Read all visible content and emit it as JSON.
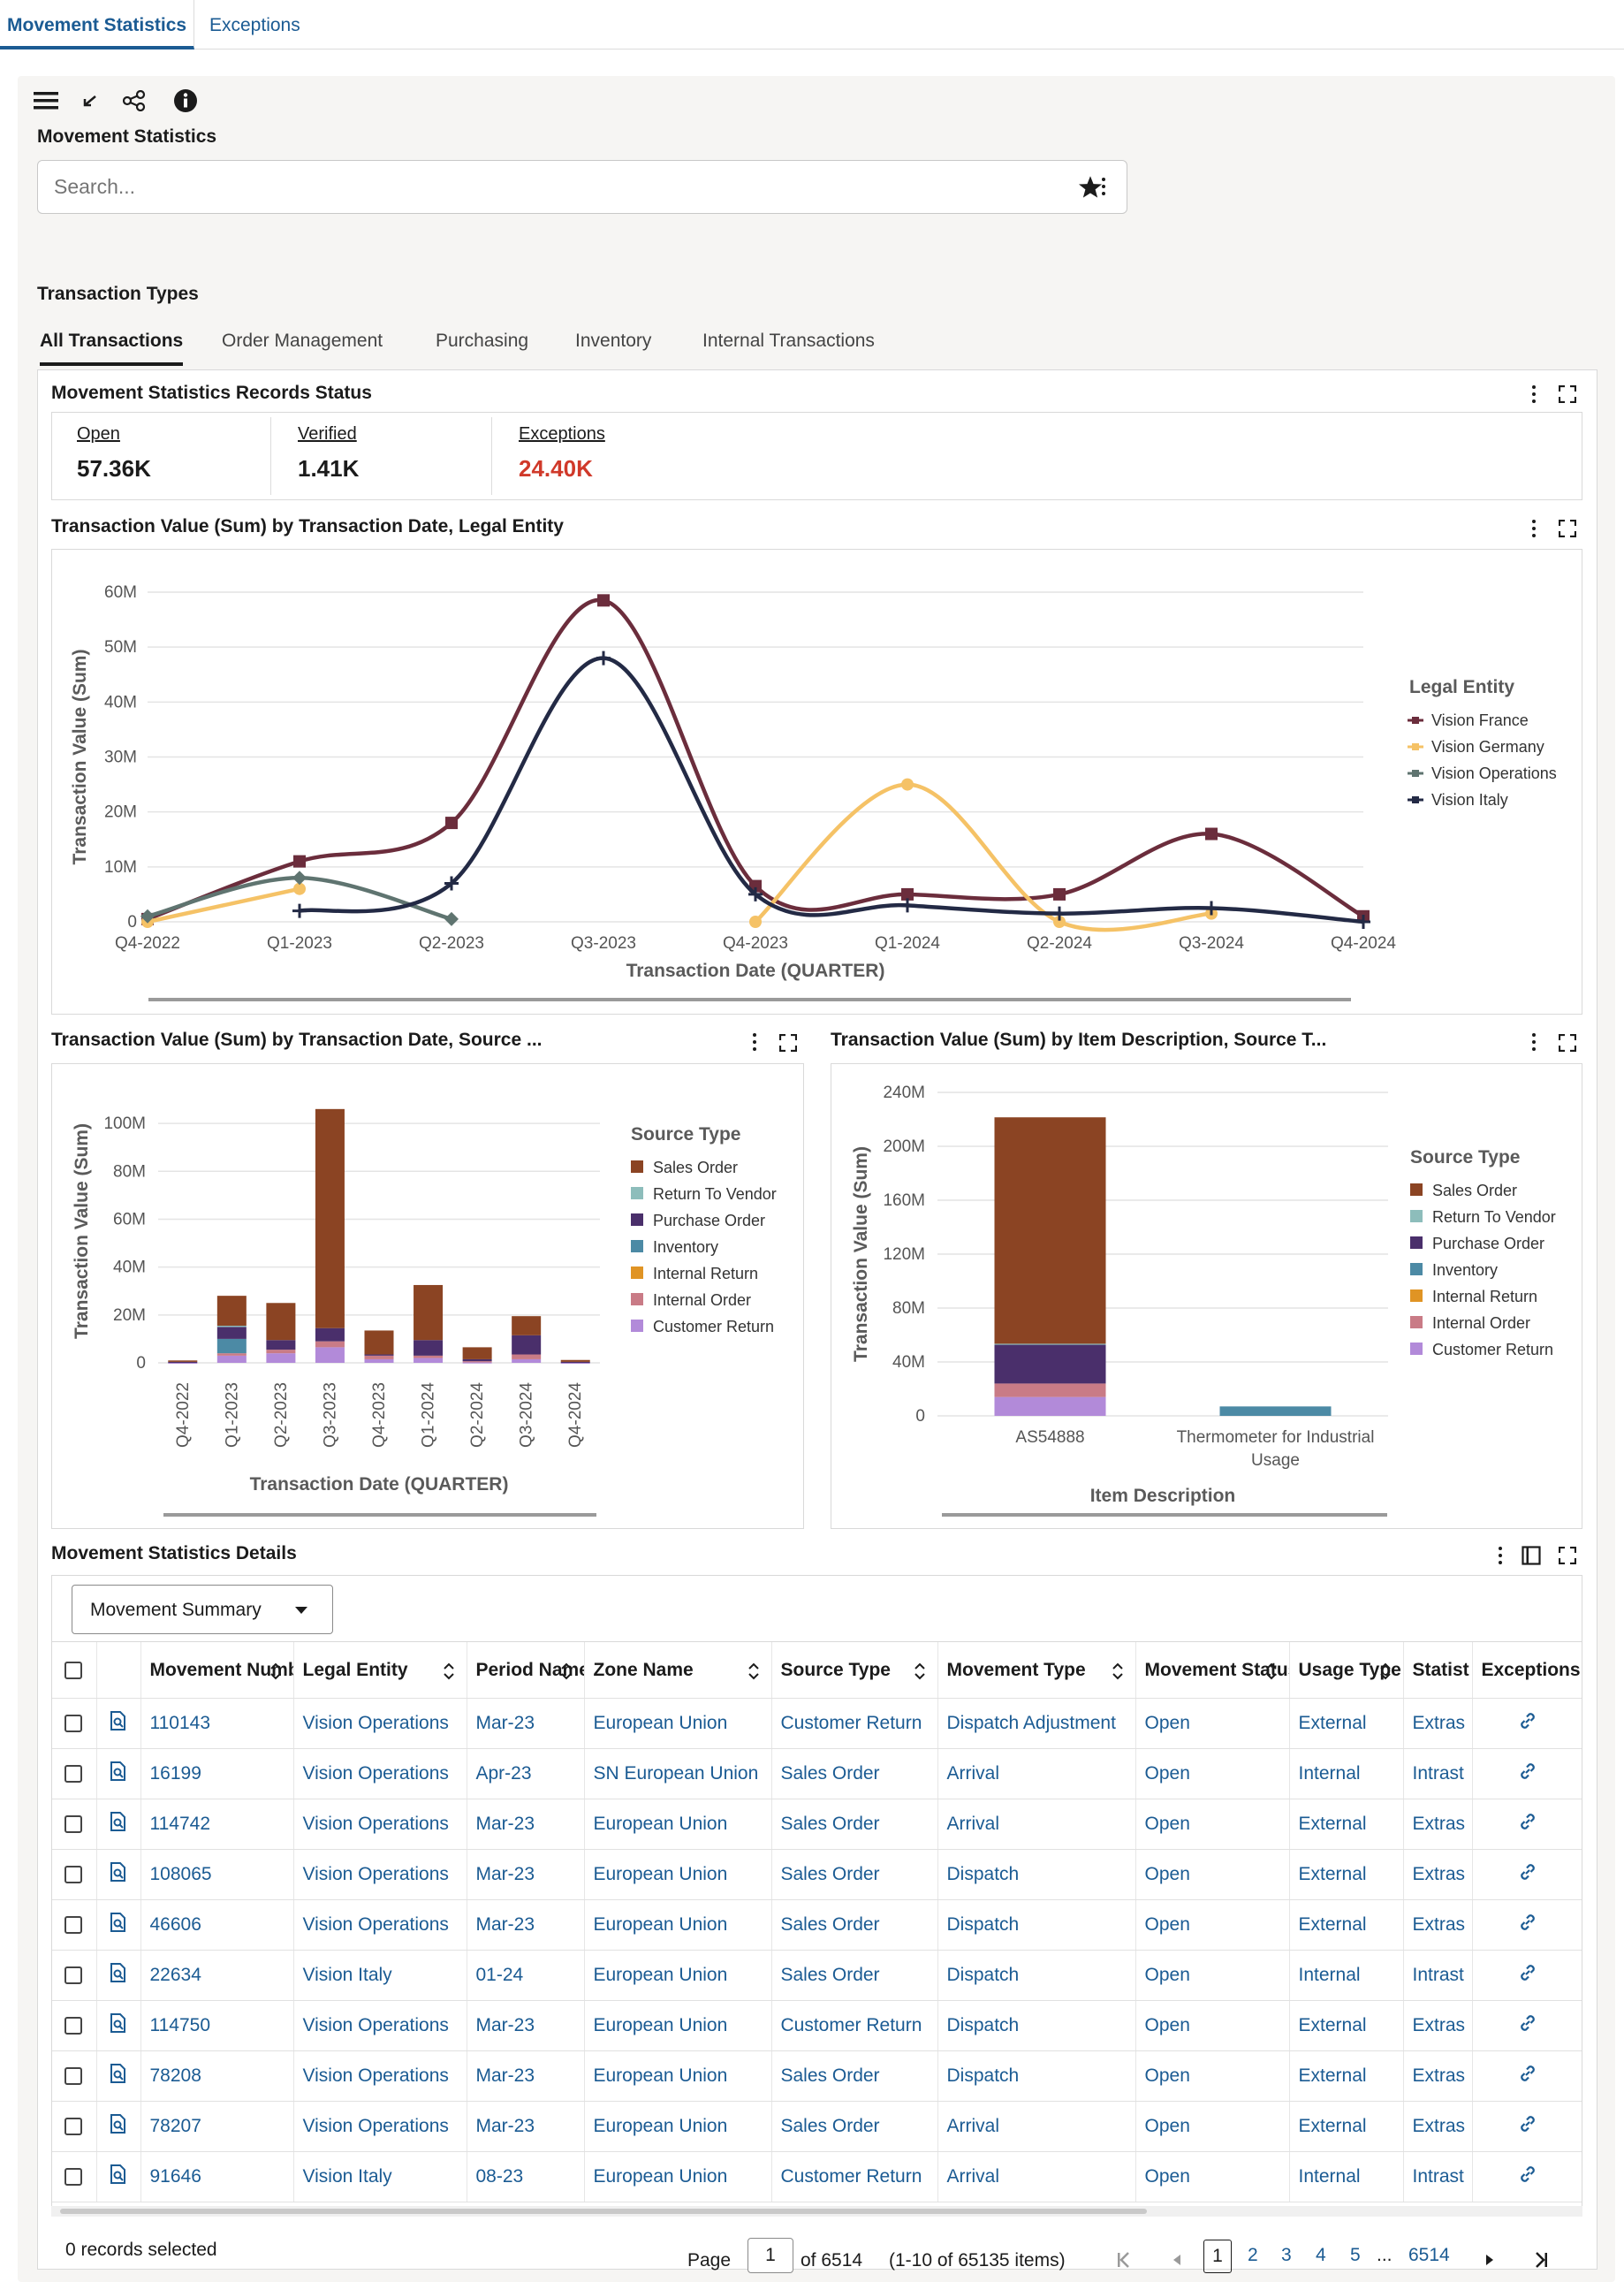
{
  "tabs": [
    {
      "label": "Movement Statistics"
    },
    {
      "label": "Exceptions"
    }
  ],
  "page_title": "Movement Statistics",
  "search": {
    "placeholder": "Search..."
  },
  "transaction_types": {
    "heading": "Transaction Types",
    "tabs": [
      "All Transactions",
      "Order Management",
      "Purchasing",
      "Inventory",
      "Internal Transactions"
    ]
  },
  "status_card": {
    "title": "Movement Statistics Records Status",
    "metrics": [
      {
        "label": "Open",
        "value": "57.36K"
      },
      {
        "label": "Verified",
        "value": "1.41K"
      },
      {
        "label": "Exceptions",
        "value": "24.40K"
      }
    ]
  },
  "colors": {
    "accent": "#1b5b93",
    "exceptions_red": "#d0392a"
  },
  "chart_data": [
    {
      "type": "line",
      "title": "Transaction Value (Sum) by Transaction Date, Legal Entity",
      "xlabel": "Transaction Date (QUARTER)",
      "ylabel": "Transaction Value (Sum)",
      "ylim": [
        0,
        60
      ],
      "yticks": [
        "0",
        "10M",
        "20M",
        "30M",
        "40M",
        "50M",
        "60M"
      ],
      "categories": [
        "Q4-2022",
        "Q1-2023",
        "Q2-2023",
        "Q3-2023",
        "Q4-2023",
        "Q1-2024",
        "Q2-2024",
        "Q3-2024",
        "Q4-2024"
      ],
      "legend_title": "Legal Entity",
      "series": [
        {
          "name": "Vision France",
          "color": "#6b2d3c",
          "marker": "square",
          "values": [
            0.5,
            11,
            18,
            58.5,
            6.5,
            5,
            5,
            16,
            1
          ]
        },
        {
          "name": "Vision Germany",
          "color": "#f5c266",
          "marker": "circle",
          "values": [
            0,
            6,
            null,
            null,
            0,
            25,
            0,
            1.5,
            null
          ]
        },
        {
          "name": "Vision Operations",
          "color": "#5f7470",
          "marker": "diamond",
          "values": [
            1,
            8,
            0.5,
            null,
            null,
            null,
            null,
            null,
            null
          ]
        },
        {
          "name": "Vision Italy",
          "color": "#232a45",
          "marker": "plus",
          "values": [
            null,
            2,
            7,
            48,
            5,
            3,
            1.5,
            2.5,
            0
          ]
        }
      ]
    },
    {
      "type": "bar",
      "stacked": true,
      "title": "Transaction Value (Sum) by Transaction Date, Source ...",
      "xlabel": "Transaction Date (QUARTER)",
      "ylabel": "Transaction Value (Sum)",
      "ylim": [
        0,
        110
      ],
      "yticks": [
        "0",
        "20M",
        "40M",
        "60M",
        "80M",
        "100M"
      ],
      "categories": [
        "Q4-2022",
        "Q1-2023",
        "Q2-2023",
        "Q3-2023",
        "Q4-2023",
        "Q1-2024",
        "Q2-2024",
        "Q3-2024",
        "Q4-2024"
      ],
      "legend_title": "Source Type",
      "series": [
        {
          "name": "Sales Order",
          "color": "#8b4423",
          "values": [
            0.6,
            12.5,
            15.5,
            91.5,
            10,
            23,
            5,
            8,
            0.8
          ]
        },
        {
          "name": "Return To Vendor",
          "color": "#8dbdbb",
          "values": [
            0,
            0.5,
            0,
            0,
            0,
            0,
            0,
            0,
            0
          ]
        },
        {
          "name": "Purchase Order",
          "color": "#4a2f6b",
          "values": [
            0.3,
            5,
            4,
            5.5,
            0.5,
            6.5,
            0.8,
            8,
            0.3
          ]
        },
        {
          "name": "Inventory",
          "color": "#4c8aa5",
          "values": [
            0,
            6,
            0,
            0,
            0,
            0,
            0,
            0,
            0
          ]
        },
        {
          "name": "Internal Return",
          "color": "#e09424",
          "values": [
            0,
            0,
            0,
            0,
            0,
            0,
            0,
            0,
            0
          ]
        },
        {
          "name": "Internal Order",
          "color": "#c97b86",
          "values": [
            0,
            1,
            1.5,
            2.5,
            1.5,
            1,
            0.5,
            2,
            0
          ]
        },
        {
          "name": "Customer Return",
          "color": "#b28ad9",
          "values": [
            0.1,
            3,
            4,
            6.5,
            1.5,
            2,
            0.2,
            1.5,
            0.1
          ]
        }
      ]
    },
    {
      "type": "bar",
      "stacked": true,
      "title": "Transaction Value (Sum) by Item Description, Source T...",
      "xlabel": "Item Description",
      "ylabel": "Transaction Value (Sum)",
      "ylim": [
        0,
        240
      ],
      "yticks": [
        "0",
        "40M",
        "80M",
        "120M",
        "160M",
        "200M",
        "240M"
      ],
      "categories": [
        "AS54888",
        "Thermometer for Industrial Usage"
      ],
      "legend_title": "Source Type",
      "series": [
        {
          "name": "Sales Order",
          "color": "#8b4423",
          "values": [
            168,
            0
          ]
        },
        {
          "name": "Return To Vendor",
          "color": "#8dbdbb",
          "values": [
            0.5,
            0
          ]
        },
        {
          "name": "Purchase Order",
          "color": "#4a2f6b",
          "values": [
            29,
            0
          ]
        },
        {
          "name": "Inventory",
          "color": "#4c8aa5",
          "values": [
            0,
            7
          ]
        },
        {
          "name": "Internal Return",
          "color": "#e09424",
          "values": [
            0,
            0
          ]
        },
        {
          "name": "Internal Order",
          "color": "#c97b86",
          "values": [
            10,
            0
          ]
        },
        {
          "name": "Customer Return",
          "color": "#b28ad9",
          "values": [
            14,
            0
          ]
        }
      ]
    }
  ],
  "details": {
    "title": "Movement Statistics Details",
    "view_select": "Movement Summary",
    "columns": [
      "Movement Number",
      "Legal Entity",
      "Period Name",
      "Zone Name",
      "Source Type",
      "Movement Type",
      "Movement Status",
      "Usage Type",
      "Statist Type",
      "Exceptions"
    ],
    "rows": [
      [
        "110143",
        "Vision Operations",
        "Mar-23",
        "European Union",
        "Customer Return",
        "Dispatch Adjustment",
        "Open",
        "External",
        "Extras"
      ],
      [
        "16199",
        "Vision Operations",
        "Apr-23",
        "SN European Union",
        "Sales Order",
        "Arrival",
        "Open",
        "Internal",
        "Intrast"
      ],
      [
        "114742",
        "Vision Operations",
        "Mar-23",
        "European Union",
        "Sales Order",
        "Arrival",
        "Open",
        "External",
        "Extras"
      ],
      [
        "108065",
        "Vision Operations",
        "Mar-23",
        "European Union",
        "Sales Order",
        "Dispatch",
        "Open",
        "External",
        "Extras"
      ],
      [
        "46606",
        "Vision Operations",
        "Mar-23",
        "European Union",
        "Sales Order",
        "Dispatch",
        "Open",
        "External",
        "Extras"
      ],
      [
        "22634",
        "Vision Italy",
        "01-24",
        "European Union",
        "Sales Order",
        "Dispatch",
        "Open",
        "Internal",
        "Intrast"
      ],
      [
        "114750",
        "Vision Operations",
        "Mar-23",
        "European Union",
        "Customer Return",
        "Dispatch",
        "Open",
        "External",
        "Extras"
      ],
      [
        "78208",
        "Vision Operations",
        "Mar-23",
        "European Union",
        "Sales Order",
        "Dispatch",
        "Open",
        "External",
        "Extras"
      ],
      [
        "78207",
        "Vision Operations",
        "Mar-23",
        "European Union",
        "Sales Order",
        "Arrival",
        "Open",
        "External",
        "Extras"
      ],
      [
        "91646",
        "Vision Italy",
        "08-23",
        "European Union",
        "Customer Return",
        "Arrival",
        "Open",
        "Internal",
        "Intrast"
      ]
    ],
    "records_selected": "0 records selected",
    "pagination": {
      "page_label": "Page",
      "current": "1",
      "of_label": "of 6514",
      "range": "(1-10 of 65135 items)",
      "pages": [
        "1",
        "2",
        "3",
        "4",
        "5"
      ],
      "ellipsis": "...",
      "last": "6514"
    }
  }
}
